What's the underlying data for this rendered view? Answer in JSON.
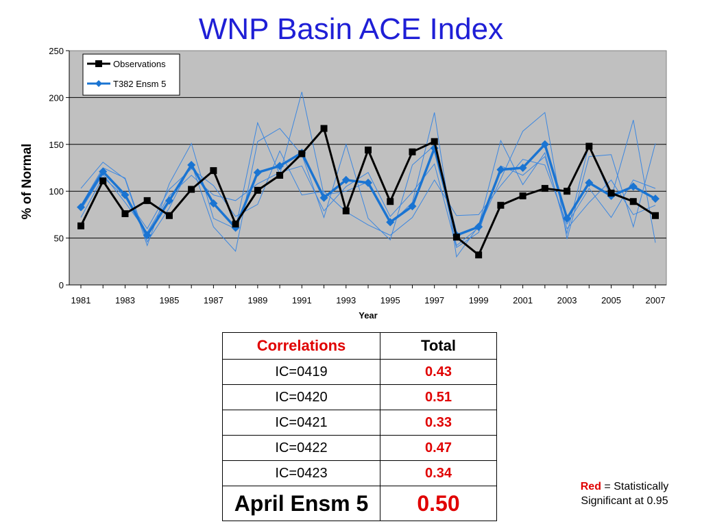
{
  "page_title": "WNP Basin ACE Index",
  "chart_data": {
    "type": "line",
    "title": "WNP Basin ACE Index",
    "xlabel": "Year",
    "ylabel": "% of Normal",
    "ylim": [
      0,
      250
    ],
    "xlim": [
      1981,
      2007
    ],
    "yticks": [
      0,
      50,
      100,
      150,
      200,
      250
    ],
    "xticks": [
      1981,
      1983,
      1985,
      1987,
      1989,
      1991,
      1993,
      1995,
      1997,
      1999,
      2001,
      2003,
      2005,
      2007
    ],
    "grid": "horizontal",
    "legend_position": "top-left",
    "x": [
      1981,
      1982,
      1983,
      1984,
      1985,
      1986,
      1987,
      1988,
      1989,
      1990,
      1991,
      1992,
      1993,
      1994,
      1995,
      1996,
      1997,
      1998,
      1999,
      2000,
      2001,
      2002,
      2003,
      2004,
      2005,
      2006,
      2007
    ],
    "series": [
      {
        "name": "Observations",
        "color": "#000000",
        "values": [
          63,
          111,
          76,
          90,
          74,
          102,
          122,
          65,
          101,
          117,
          140,
          167,
          79,
          144,
          89,
          142,
          153,
          51,
          32,
          85,
          95,
          103,
          100,
          148,
          98,
          89,
          74
        ]
      },
      {
        "name": "T382 Ensm 5",
        "color": "#1a74d2",
        "values": [
          83,
          121,
          96,
          53,
          90,
          128,
          87,
          61,
          120,
          127,
          141,
          93,
          112,
          109,
          67,
          84,
          146,
          53,
          62,
          123,
          125,
          150,
          71,
          109,
          95,
          105,
          92
        ]
      },
      {
        "color": "#3a86e0",
        "values": [
          103,
          131,
          113,
          42,
          108,
          151,
          71,
          60,
          173,
          118,
          206,
          96,
          100,
          110,
          65,
          88,
          184,
          30,
          63,
          154,
          107,
          141,
          55,
          150,
          93,
          176,
          45
        ]
      },
      {
        "color": "#3a86e0",
        "values": [
          85,
          125,
          114,
          46,
          82,
          129,
          62,
          36,
          153,
          167,
          139,
          72,
          150,
          71,
          48,
          128,
          149,
          42,
          61,
          113,
          164,
          184,
          49,
          137,
          139,
          62,
          151
        ]
      },
      {
        "color": "#3a86e0",
        "values": [
          72,
          115,
          94,
          60,
          102,
          124,
          106,
          73,
          86,
          143,
          96,
          100,
          78,
          64,
          53,
          72,
          112,
          74,
          75,
          106,
          134,
          128,
          65,
          103,
          72,
          112,
          103
        ]
      },
      {
        "color": "#3a86e0",
        "values": [
          80,
          118,
          88,
          56,
          95,
          117,
          96,
          90,
          108,
          120,
          127,
          79,
          105,
          120,
          73,
          99,
          129,
          40,
          56,
          127,
          117,
          137,
          60,
          88,
          112,
          75,
          85
        ]
      }
    ]
  },
  "table": {
    "headers": [
      "Correlations",
      "Total"
    ],
    "rows": [
      {
        "label": "IC=0419",
        "value": "0.43"
      },
      {
        "label": "IC=0420",
        "value": "0.51"
      },
      {
        "label": "IC=0421",
        "value": "0.33"
      },
      {
        "label": "IC=0422",
        "value": "0.47"
      },
      {
        "label": "IC=0423",
        "value": "0.34"
      }
    ],
    "summary": {
      "label": "April Ensm 5",
      "value": "0.50"
    }
  },
  "note": {
    "red_word": "Red",
    "text1": " = Statistically",
    "text2": "Significant at 0.95"
  },
  "colors": {
    "title": "#1f1fd6",
    "plot_bg": "#c0c0c0",
    "significant": "#e00000"
  }
}
